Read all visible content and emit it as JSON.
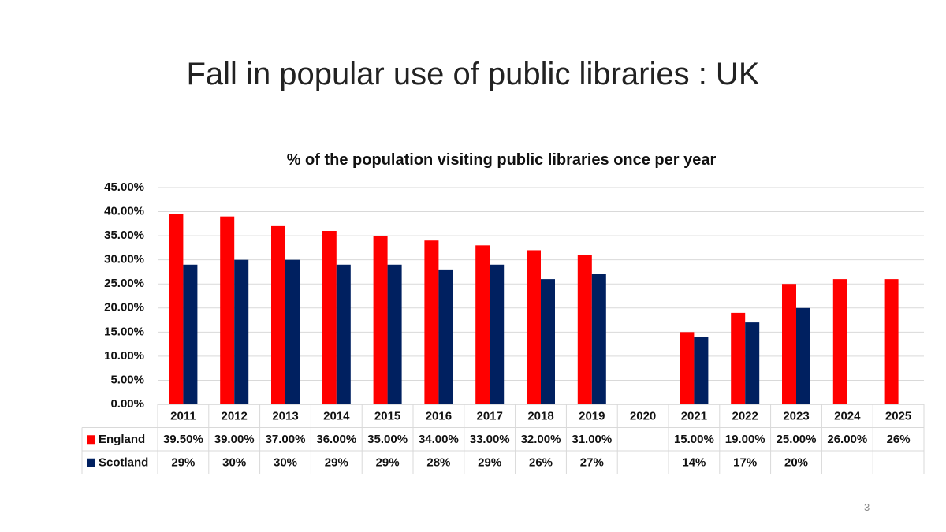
{
  "slide": {
    "title": "Fall in popular use of public libraries : UK",
    "page_number": "3"
  },
  "chart_data": {
    "type": "bar",
    "title": "% of the population visiting public libraries once per year",
    "categories": [
      "2011",
      "2012",
      "2013",
      "2014",
      "2015",
      "2016",
      "2017",
      "2018",
      "2019",
      "2020",
      "2021",
      "2022",
      "2023",
      "2024",
      "2025"
    ],
    "ylim": [
      0,
      0.45
    ],
    "y_ticks": [
      "0.00%",
      "5.00%",
      "10.00%",
      "15.00%",
      "20.00%",
      "25.00%",
      "30.00%",
      "35.00%",
      "40.00%",
      "45.00%"
    ],
    "grid": true,
    "legend": "data-table",
    "series": [
      {
        "name": "England",
        "color": "#FF0000",
        "values": [
          0.395,
          0.39,
          0.37,
          0.36,
          0.35,
          0.34,
          0.33,
          0.32,
          0.31,
          null,
          0.15,
          0.19,
          0.25,
          0.26,
          0.26
        ],
        "table_labels": [
          "39.50%",
          "39.00%",
          "37.00%",
          "36.00%",
          "35.00%",
          "34.00%",
          "33.00%",
          "32.00%",
          "31.00%",
          "",
          "15.00%",
          "19.00%",
          "25.00%",
          "26.00%",
          "26%"
        ]
      },
      {
        "name": "Scotland",
        "color": "#002060",
        "values": [
          0.29,
          0.3,
          0.3,
          0.29,
          0.29,
          0.28,
          0.29,
          0.26,
          0.27,
          null,
          0.14,
          0.17,
          0.2,
          null,
          null
        ],
        "table_labels": [
          "29%",
          "30%",
          "30%",
          "29%",
          "29%",
          "28%",
          "29%",
          "26%",
          "27%",
          "",
          "14%",
          "17%",
          "20%",
          "",
          ""
        ]
      }
    ]
  }
}
